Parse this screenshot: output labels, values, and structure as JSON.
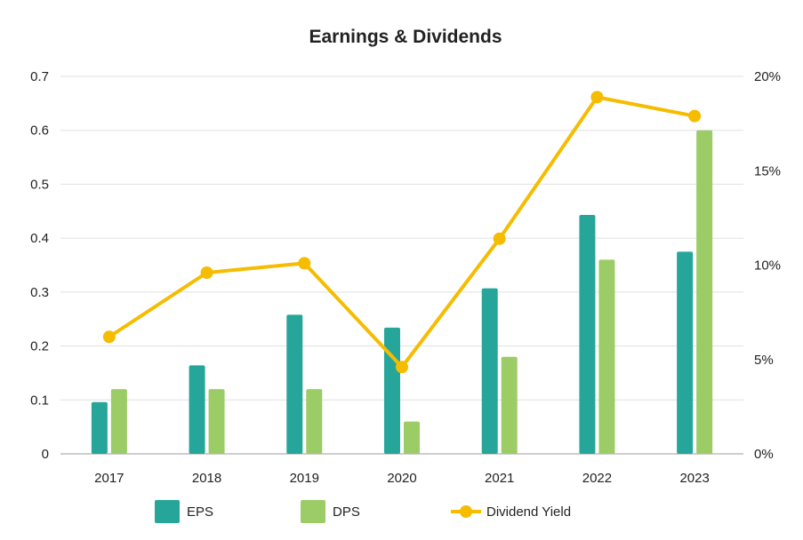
{
  "chart_data": {
    "type": "bar",
    "title": "Earnings & Dividends",
    "categories": [
      "2017",
      "2018",
      "2019",
      "2020",
      "2021",
      "2022",
      "2023"
    ],
    "series": [
      {
        "name": "EPS",
        "type": "bar",
        "axis": "left",
        "color": "#26a69a",
        "values": [
          0.096,
          0.164,
          0.258,
          0.234,
          0.307,
          0.443,
          0.375
        ]
      },
      {
        "name": "DPS",
        "type": "bar",
        "axis": "left",
        "color": "#9ccc65",
        "values": [
          0.12,
          0.12,
          0.12,
          0.06,
          0.18,
          0.36,
          0.6
        ]
      }
    ],
    "line_series": {
      "name": "Dividend Yield",
      "type": "line",
      "axis": "right",
      "color": "#f5bc00",
      "values": [
        6.2,
        9.6,
        10.1,
        4.6,
        11.4,
        18.9,
        17.9
      ]
    },
    "y_left": {
      "ylim": [
        0,
        0.7
      ],
      "ticks": [
        "0",
        "0.1",
        "0.2",
        "0.3",
        "0.4",
        "0.5",
        "0.6",
        "0.7"
      ]
    },
    "y_right": {
      "ylim": [
        0,
        20
      ],
      "ticks": [
        "0%",
        "5%",
        "10%",
        "15%",
        "20%"
      ]
    },
    "grid": true,
    "legend": "bottom"
  }
}
